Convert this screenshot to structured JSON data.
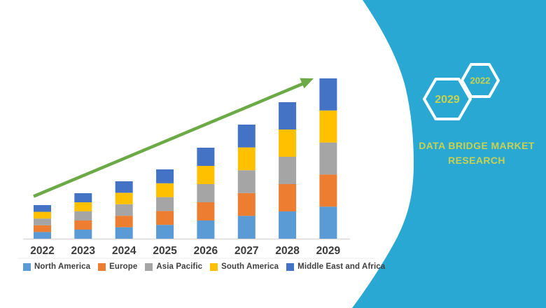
{
  "chart_data": {
    "type": "bar",
    "stacked": true,
    "title": "",
    "categories": [
      "2022",
      "2023",
      "2024",
      "2025",
      "2026",
      "2027",
      "2028",
      "2029"
    ],
    "series": [
      {
        "name": "North America",
        "color": "#5B9BD5",
        "values": [
          9.6,
          13,
          16.4,
          19.8,
          26,
          32.6,
          39,
          45.8
        ]
      },
      {
        "name": "Europe",
        "color": "#ED7D31",
        "values": [
          9.6,
          13,
          16.4,
          19.8,
          26,
          32.6,
          39,
          45.8
        ]
      },
      {
        "name": "Asia Pacific",
        "color": "#A5A5A5",
        "values": [
          9.6,
          13,
          16.4,
          19.8,
          26,
          32.6,
          39,
          45.8
        ]
      },
      {
        "name": "South America",
        "color": "#FFC000",
        "values": [
          9.6,
          13,
          16.4,
          19.8,
          26,
          32.6,
          39,
          45.8
        ]
      },
      {
        "name": "Middle East and Africa",
        "color": "#4472C4",
        "values": [
          9.6,
          13,
          16.4,
          19.8,
          26,
          32.6,
          39,
          45.8
        ]
      }
    ],
    "stack_totals": [
      48,
      65,
      82,
      99,
      130,
      163,
      195,
      229
    ],
    "value_note": "relative units; no y-axis values shown in image",
    "ylim": [
      0,
      240
    ],
    "y_axis_visible": false,
    "legend_position": "bottom",
    "trend_arrow": "up",
    "arrow_color": "#6BAA46",
    "axis_line_color": "#D9D9D9"
  },
  "right_panel": {
    "brand_name": "DATA BRIDGE MARKET RESEARCH",
    "hexagon_labels": {
      "first": "2029",
      "second": "2022"
    },
    "background_color": "#29A8D4",
    "text_color": "#C9D24F"
  }
}
